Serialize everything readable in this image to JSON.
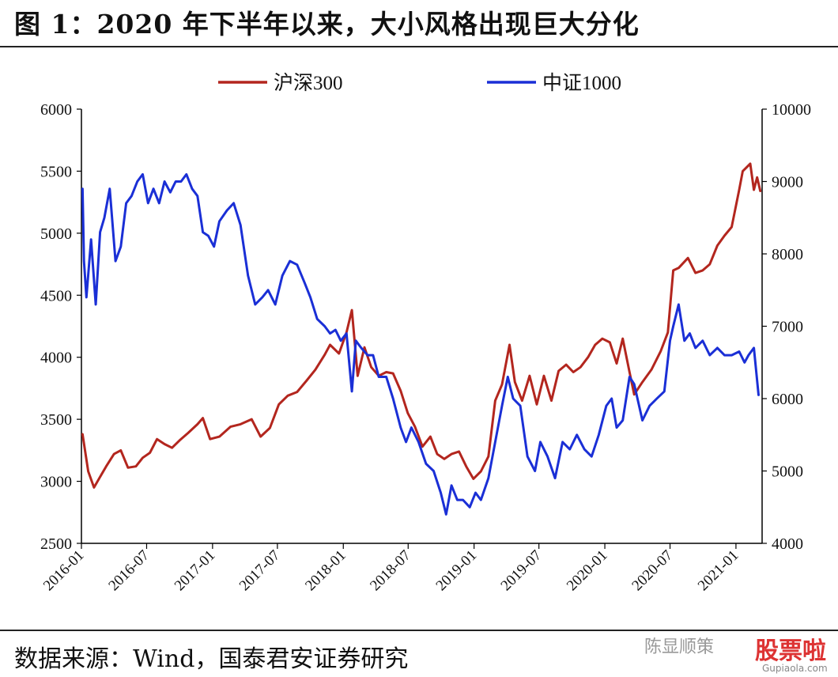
{
  "header": {
    "title": "图 1：2020 年下半年以来，大小风格出现巨大分化"
  },
  "footer": {
    "source": "数据来源：Wind，国泰君安证券研究"
  },
  "watermark": {
    "account": "陈显顺策",
    "logo": "股票啦",
    "url": "Gupiaola.com"
  },
  "chart_data": {
    "type": "line",
    "x_ticks": [
      "2016-01",
      "2016-07",
      "2017-01",
      "2017-07",
      "2018-01",
      "2018-07",
      "2019-01",
      "2019-07",
      "2020-01",
      "2020-07",
      "2021-01"
    ],
    "y_left": {
      "ticks": [
        2500,
        3000,
        3500,
        4000,
        4500,
        5000,
        5500,
        6000
      ],
      "range": [
        2500,
        6000
      ]
    },
    "y_right": {
      "ticks": [
        4000,
        5000,
        6000,
        7000,
        8000,
        9000,
        10000
      ],
      "range": [
        4000,
        10000
      ]
    },
    "grid": false,
    "legend_position": "top-center",
    "series": [
      {
        "name": "沪深300",
        "axis": "left",
        "color": "#b3261e",
        "x": [
          "2016-01-04",
          "2016-01-20",
          "2016-02-05",
          "2016-02-25",
          "2016-03-10",
          "2016-04-01",
          "2016-04-20",
          "2016-05-10",
          "2016-06-01",
          "2016-06-20",
          "2016-07-10",
          "2016-07-30",
          "2016-08-20",
          "2016-09-10",
          "2016-10-01",
          "2016-10-25",
          "2016-11-20",
          "2016-12-05",
          "2016-12-25",
          "2017-01-20",
          "2017-02-20",
          "2017-03-20",
          "2017-04-20",
          "2017-05-15",
          "2017-06-10",
          "2017-07-05",
          "2017-07-30",
          "2017-08-25",
          "2017-09-20",
          "2017-10-15",
          "2017-11-10",
          "2017-11-25",
          "2017-12-20",
          "2018-01-10",
          "2018-01-25",
          "2018-02-10",
          "2018-03-01",
          "2018-03-20",
          "2018-04-10",
          "2018-05-01",
          "2018-05-20",
          "2018-06-10",
          "2018-06-30",
          "2018-07-20",
          "2018-08-10",
          "2018-09-01",
          "2018-09-20",
          "2018-10-10",
          "2018-10-30",
          "2018-11-20",
          "2018-12-10",
          "2018-12-30",
          "2019-01-20",
          "2019-02-10",
          "2019-03-01",
          "2019-03-20",
          "2019-04-10",
          "2019-04-25",
          "2019-05-15",
          "2019-06-05",
          "2019-06-25",
          "2019-07-15",
          "2019-08-05",
          "2019-08-25",
          "2019-09-15",
          "2019-10-05",
          "2019-10-25",
          "2019-11-15",
          "2019-12-05",
          "2019-12-25",
          "2020-01-15",
          "2020-02-03",
          "2020-02-20",
          "2020-03-10",
          "2020-03-23",
          "2020-04-15",
          "2020-05-10",
          "2020-06-05",
          "2020-06-25",
          "2020-07-10",
          "2020-07-25",
          "2020-08-20",
          "2020-09-10",
          "2020-09-30",
          "2020-10-20",
          "2020-11-10",
          "2020-11-30",
          "2020-12-20",
          "2021-01-10",
          "2021-01-20",
          "2021-02-10",
          "2021-02-20",
          "2021-03-01",
          "2021-03-10"
        ],
        "values": [
          3380,
          3080,
          2950,
          3050,
          3120,
          3220,
          3250,
          3110,
          3120,
          3190,
          3230,
          3340,
          3300,
          3270,
          3330,
          3390,
          3460,
          3510,
          3340,
          3360,
          3440,
          3460,
          3500,
          3360,
          3430,
          3620,
          3690,
          3720,
          3810,
          3900,
          4020,
          4100,
          4030,
          4200,
          4380,
          3850,
          4080,
          3920,
          3850,
          3880,
          3870,
          3730,
          3550,
          3440,
          3280,
          3360,
          3220,
          3180,
          3220,
          3240,
          3120,
          3020,
          3080,
          3200,
          3650,
          3780,
          4100,
          3800,
          3650,
          3850,
          3620,
          3850,
          3650,
          3890,
          3940,
          3880,
          3920,
          4000,
          4100,
          4150,
          4120,
          3950,
          4150,
          3880,
          3700,
          3800,
          3900,
          4050,
          4200,
          4700,
          4720,
          4800,
          4680,
          4700,
          4750,
          4900,
          4980,
          5050,
          5350,
          5500,
          5560,
          5350,
          5450,
          5340
        ]
      },
      {
        "name": "中证1000",
        "axis": "right",
        "color": "#1a2fd6",
        "x": [
          "2016-01-04",
          "2016-01-08",
          "2016-01-15",
          "2016-01-28",
          "2016-02-10",
          "2016-02-22",
          "2016-03-05",
          "2016-03-20",
          "2016-04-05",
          "2016-04-20",
          "2016-05-05",
          "2016-05-20",
          "2016-06-05",
          "2016-06-20",
          "2016-07-05",
          "2016-07-20",
          "2016-08-05",
          "2016-08-20",
          "2016-09-05",
          "2016-09-20",
          "2016-10-05",
          "2016-10-20",
          "2016-11-05",
          "2016-11-20",
          "2016-12-05",
          "2016-12-20",
          "2017-01-05",
          "2017-01-20",
          "2017-02-10",
          "2017-03-01",
          "2017-03-20",
          "2017-04-10",
          "2017-04-30",
          "2017-05-20",
          "2017-06-05",
          "2017-06-25",
          "2017-07-15",
          "2017-08-05",
          "2017-08-25",
          "2017-09-15",
          "2017-10-01",
          "2017-10-20",
          "2017-11-10",
          "2017-11-25",
          "2017-12-10",
          "2017-12-25",
          "2018-01-10",
          "2018-01-25",
          "2018-02-05",
          "2018-02-20",
          "2018-03-10",
          "2018-03-25",
          "2018-04-10",
          "2018-05-01",
          "2018-05-20",
          "2018-06-10",
          "2018-06-25",
          "2018-07-10",
          "2018-07-30",
          "2018-08-20",
          "2018-09-10",
          "2018-09-30",
          "2018-10-15",
          "2018-10-30",
          "2018-11-15",
          "2018-12-01",
          "2018-12-20",
          "2019-01-05",
          "2019-01-20",
          "2019-02-10",
          "2019-03-01",
          "2019-03-20",
          "2019-04-05",
          "2019-04-20",
          "2019-05-10",
          "2019-05-30",
          "2019-06-20",
          "2019-07-05",
          "2019-07-25",
          "2019-08-15",
          "2019-09-05",
          "2019-09-25",
          "2019-10-15",
          "2019-11-05",
          "2019-11-25",
          "2019-12-15",
          "2020-01-05",
          "2020-01-20",
          "2020-02-03",
          "2020-02-20",
          "2020-03-10",
          "2020-03-23",
          "2020-04-15",
          "2020-05-05",
          "2020-05-25",
          "2020-06-15",
          "2020-07-01",
          "2020-07-10",
          "2020-07-25",
          "2020-08-10",
          "2020-08-25",
          "2020-09-10",
          "2020-09-30",
          "2020-10-20",
          "2020-11-10",
          "2020-11-30",
          "2020-12-20",
          "2021-01-10",
          "2021-01-25",
          "2021-02-05",
          "2021-02-20",
          "2021-03-05"
        ],
        "values": [
          8900,
          7900,
          7400,
          8200,
          7300,
          8300,
          8500,
          8900,
          7900,
          8100,
          8700,
          8800,
          9000,
          9100,
          8700,
          8900,
          8700,
          9000,
          8850,
          9000,
          9000,
          9100,
          8900,
          8800,
          8300,
          8250,
          8100,
          8450,
          8600,
          8700,
          8400,
          7700,
          7300,
          7400,
          7500,
          7300,
          7700,
          7900,
          7850,
          7600,
          7400,
          7100,
          7000,
          6900,
          6950,
          6800,
          6900,
          6100,
          6800,
          6700,
          6600,
          6600,
          6300,
          6300,
          6000,
          5600,
          5400,
          5600,
          5400,
          5100,
          5000,
          4700,
          4400,
          4800,
          4600,
          4600,
          4500,
          4700,
          4600,
          4900,
          5400,
          5900,
          6300,
          6000,
          5900,
          5200,
          5000,
          5400,
          5200,
          4900,
          5400,
          5300,
          5500,
          5300,
          5200,
          5500,
          5900,
          6000,
          5600,
          5700,
          6300,
          6200,
          5700,
          5900,
          6000,
          6100,
          6800,
          7000,
          7300,
          6800,
          6900,
          6700,
          6800,
          6600,
          6700,
          6600,
          6600,
          6650,
          6500,
          6600,
          6700,
          6050
        ]
      }
    ]
  }
}
